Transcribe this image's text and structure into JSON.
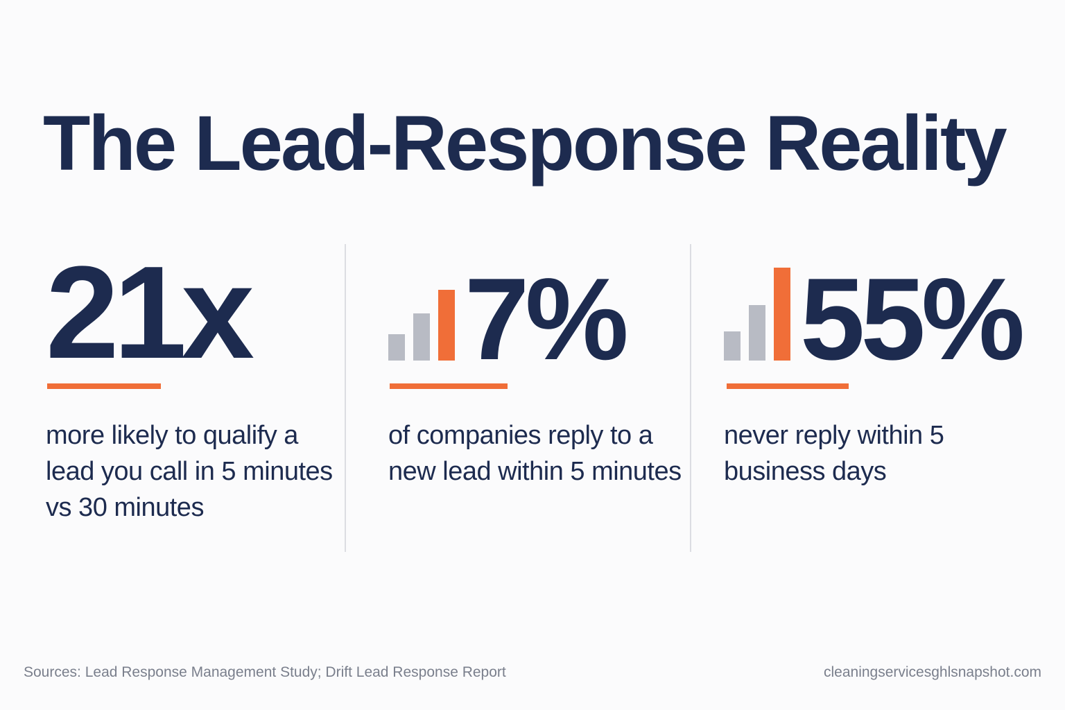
{
  "title": "The Lead-Response Reality",
  "colors": {
    "primary": "#1d2b4f",
    "accent": "#f06e38",
    "muted_bar": "#b8bbc4",
    "divider": "#dcdde2",
    "footer_text": "#7a7f8c"
  },
  "stats": [
    {
      "value": "21x",
      "description": "more likely to qualify a lead you call in 5 minutes vs 30 minutes",
      "has_bars": false
    },
    {
      "value": "7%",
      "description": "of companies reply to a new lead within 5 minutes",
      "has_bars": true,
      "bar_icon": "bar-chart-icon"
    },
    {
      "value": "55%",
      "description": "never reply within 5 business days",
      "has_bars": true,
      "bar_icon": "bar-chart-icon"
    }
  ],
  "footer": {
    "sources": "Sources: Lead Response Management Study; Drift Lead Response Report",
    "site": "cleaningservicesghlsnapshot.com"
  }
}
